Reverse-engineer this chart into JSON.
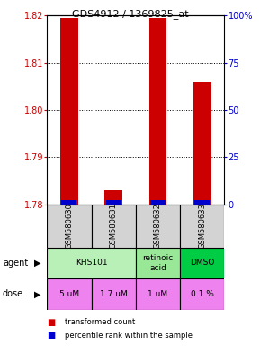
{
  "title": "GDS4912 / 1369825_at",
  "samples": [
    "GSM580630",
    "GSM580631",
    "GSM580632",
    "GSM580633"
  ],
  "red_values": [
    1.8195,
    1.783,
    1.8195,
    1.806
  ],
  "blue_values": [
    0.4,
    0.4,
    0.4,
    0.4
  ],
  "ymin": 1.78,
  "ymax": 1.82,
  "yticks_left": [
    1.78,
    1.79,
    1.8,
    1.81,
    1.82
  ],
  "yticks_right": [
    0,
    25,
    50,
    75,
    100
  ],
  "agents_def": [
    {
      "label": "KHS101",
      "start": 0,
      "end": 2,
      "color": "#b8f0b8"
    },
    {
      "label": "retinoic\nacid",
      "start": 2,
      "end": 3,
      "color": "#98e898"
    },
    {
      "label": "DMSO",
      "start": 3,
      "end": 4,
      "color": "#00cc44"
    }
  ],
  "doses_def": [
    {
      "label": "5 uM",
      "start": 0,
      "end": 1,
      "color": "#ee82ee"
    },
    {
      "label": "1.7 uM",
      "start": 1,
      "end": 2,
      "color": "#ee82ee"
    },
    {
      "label": "1 uM",
      "start": 2,
      "end": 3,
      "color": "#ee82ee"
    },
    {
      "label": "0.1 %",
      "start": 3,
      "end": 4,
      "color": "#ee82ee"
    }
  ],
  "red_color": "#cc0000",
  "blue_color": "#0000cc",
  "bar_width": 0.4,
  "bg_color": "#ffffff",
  "left_axis_color": "#cc0000",
  "right_axis_color": "#0000cc"
}
